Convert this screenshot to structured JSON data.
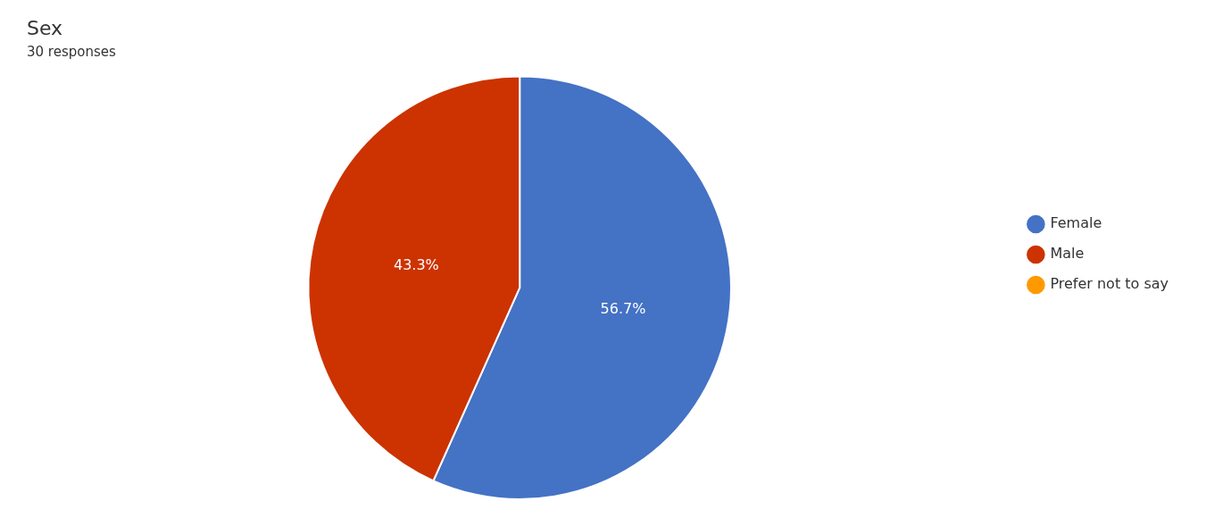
{
  "chart_data": {
    "type": "pie",
    "title": "Sex",
    "subtitle": "30 responses",
    "categories": [
      "Female",
      "Male",
      "Prefer not to say"
    ],
    "values": [
      56.7,
      43.3,
      0.0
    ],
    "value_labels": [
      "56.7%",
      "43.3%",
      null
    ],
    "colors": [
      "#4472C4",
      "#CC3300",
      "#FF9900"
    ],
    "data_labels": true,
    "legend": "right"
  }
}
